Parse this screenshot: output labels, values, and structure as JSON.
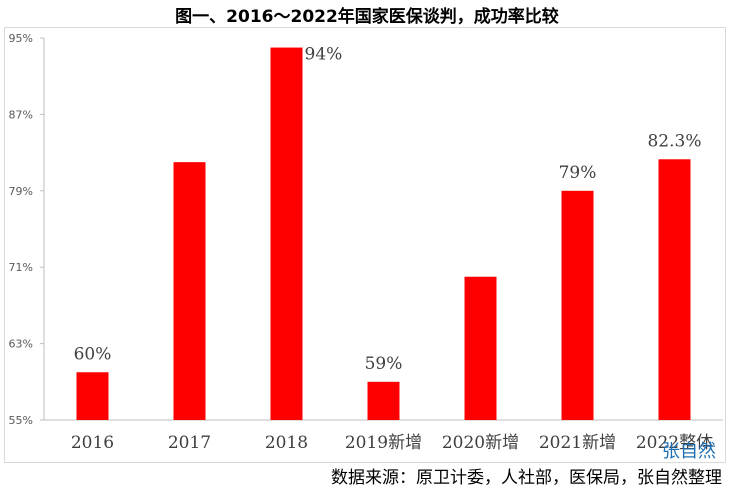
{
  "chart_data": {
    "type": "bar",
    "title": "图一、2016～2022年国家医保谈判，成功率比较",
    "categories": [
      "2016",
      "2017",
      "2018",
      "2019新增",
      "2020新增",
      "2021新增",
      "2022整体"
    ],
    "values": [
      60,
      82,
      94,
      59,
      70,
      79,
      82.3
    ],
    "data_labels": [
      "60%",
      "",
      "94%",
      "59%",
      "",
      "79%",
      "82.3%"
    ],
    "ylim": [
      55,
      95
    ],
    "y_ticks": [
      "55%",
      "63%",
      "71%",
      "79%",
      "87%",
      "95%"
    ],
    "y_tick_values": [
      55,
      63,
      71,
      79,
      87,
      95
    ],
    "bar_color": "#ff0000",
    "grid": false,
    "legend": "none"
  },
  "footer": {
    "source": "数据来源：原卫计委，人社部，医保局，张自然整理",
    "watermark": "张自然"
  }
}
